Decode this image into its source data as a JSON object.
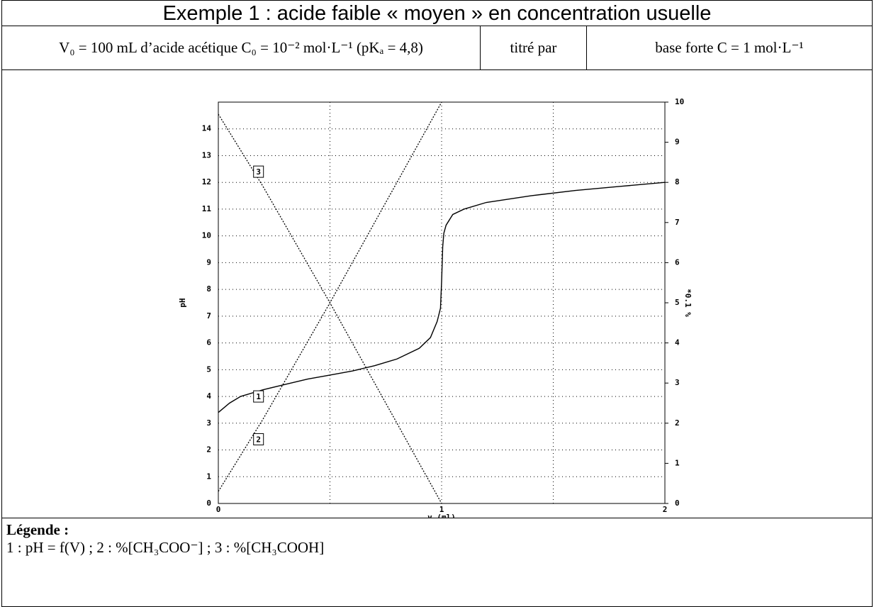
{
  "header": {
    "title": "Exemple 1 : acide faible « moyen » en concentration usuelle"
  },
  "conditions": [
    "V₀ = 100 mL d’acide acétique C₀ = 10⁻² mol·L⁻¹ (pKₐ = 4,8)",
    "titré par",
    "base forte C = 1 mol·L⁻¹"
  ],
  "chart_data": {
    "type": "line",
    "xlabel": "v (ml)",
    "ylabel": "pH",
    "y2label": "*0.1 %",
    "xlim": [
      0,
      2
    ],
    "xticks": [
      0,
      1,
      2
    ],
    "xminor": [
      0.5,
      1.5
    ],
    "ylim": [
      0,
      15
    ],
    "yticks": [
      0,
      1,
      2,
      3,
      4,
      5,
      6,
      7,
      8,
      9,
      10,
      11,
      12,
      13,
      14
    ],
    "y2lim": [
      0,
      10
    ],
    "y2ticks": [
      0,
      1,
      2,
      3,
      4,
      5,
      6,
      7,
      8,
      9,
      10
    ],
    "grid": true,
    "series": [
      {
        "name": "1",
        "color": "#000",
        "style": "solid",
        "x": [
          0,
          0.05,
          0.1,
          0.2,
          0.3,
          0.4,
          0.5,
          0.6,
          0.7,
          0.8,
          0.9,
          0.95,
          0.98,
          0.995,
          1.0,
          1.005,
          1.01,
          1.02,
          1.05,
          1.1,
          1.2,
          1.4,
          1.6,
          1.8,
          2.0
        ],
        "values": [
          3.4,
          3.75,
          4.0,
          4.25,
          4.45,
          4.65,
          4.8,
          4.95,
          5.15,
          5.4,
          5.8,
          6.2,
          6.8,
          7.3,
          8.3,
          9.6,
          10.1,
          10.4,
          10.8,
          11.0,
          11.25,
          11.5,
          11.7,
          11.85,
          12.0
        ]
      },
      {
        "name": "2",
        "color": "#000",
        "style": "dotted",
        "axis": "y2",
        "x": [
          0,
          0.1,
          0.2,
          0.5,
          0.8,
          1.0
        ],
        "values": [
          0.3,
          1.2,
          2.1,
          5.0,
          8.0,
          10
        ]
      },
      {
        "name": "3",
        "color": "#000",
        "style": "dotted",
        "axis": "y2",
        "x": [
          0,
          0.1,
          0.2,
          0.5,
          0.8,
          1.0
        ],
        "values": [
          9.7,
          8.8,
          7.9,
          5.0,
          2.0,
          0
        ]
      }
    ],
    "annotations": [
      {
        "text": "1",
        "x": 0.18,
        "y": 4.0
      },
      {
        "text": "2",
        "x": 0.18,
        "y": 2.4
      },
      {
        "text": "3",
        "x": 0.18,
        "y": 12.4
      }
    ]
  },
  "legend": {
    "title": "Légende :",
    "text": "1 : pH = f(V) ; 2 : %[CH₃COO⁻] ; 3 : %[CH₃COOH]"
  }
}
